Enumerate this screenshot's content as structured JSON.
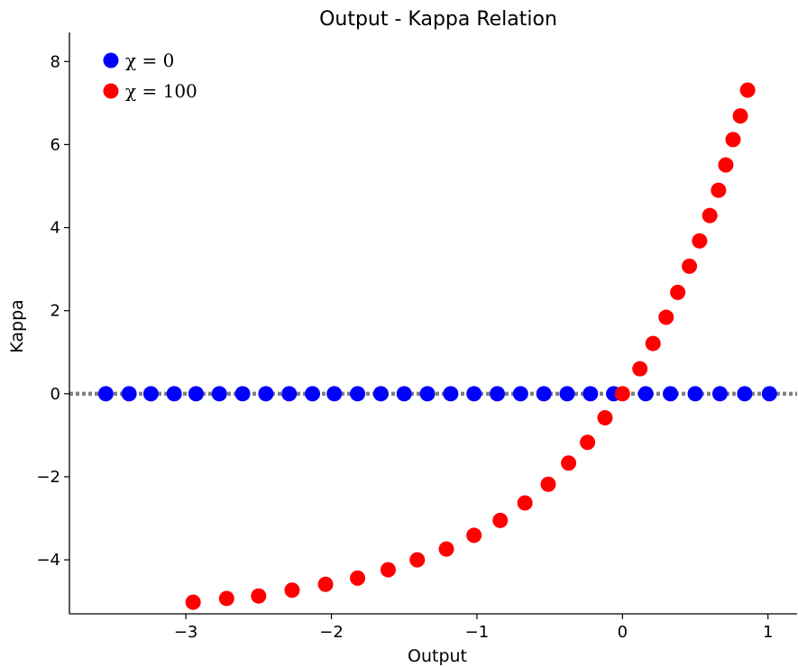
{
  "chart_data": {
    "type": "scatter",
    "title": "Output - Kappa Relation",
    "xlabel": "Output",
    "ylabel": "Kappa",
    "xlim": [
      -3.8,
      1.2
    ],
    "ylim": [
      -5.3,
      8.7
    ],
    "xticks": [
      -3,
      -2,
      -1,
      0,
      1
    ],
    "xtick_labels": [
      "−3",
      "−2",
      "−1",
      "0",
      "1"
    ],
    "yticks": [
      -4,
      -2,
      0,
      2,
      4,
      6,
      8
    ],
    "ytick_labels": [
      "−4",
      "−2",
      "0",
      "2",
      "4",
      "6",
      "8"
    ],
    "grid": false,
    "legend_position": "top-left",
    "reference_line": {
      "y": 0,
      "style": "dotted",
      "color": "#808080"
    },
    "series": [
      {
        "name": "χ = 0",
        "color": "#0000ff",
        "x": [
          -3.55,
          -3.39,
          -3.24,
          -3.08,
          -2.93,
          -2.77,
          -2.61,
          -2.45,
          -2.29,
          -2.13,
          -1.98,
          -1.82,
          -1.66,
          -1.5,
          -1.34,
          -1.18,
          -1.02,
          -0.86,
          -0.7,
          -0.54,
          -0.38,
          -0.22,
          -0.06,
          0.16,
          0.33,
          0.5,
          0.67,
          0.84,
          1.01
        ],
        "y": [
          0,
          0,
          0,
          0,
          0,
          0,
          0,
          0,
          0,
          0,
          0,
          0,
          0,
          0,
          0,
          0,
          0,
          0,
          0,
          0,
          0,
          0,
          0,
          0,
          0,
          0,
          0,
          0,
          0
        ]
      },
      {
        "name": "χ = 100",
        "color": "#ff0000",
        "x": [
          -2.95,
          -2.72,
          -2.5,
          -2.27,
          -2.04,
          -1.82,
          -1.61,
          -1.41,
          -1.21,
          -1.02,
          -0.84,
          -0.67,
          -0.51,
          -0.37,
          -0.24,
          -0.12,
          0.0,
          0.12,
          0.21,
          0.3,
          0.38,
          0.46,
          0.53,
          0.6,
          0.66,
          0.71,
          0.76,
          0.81,
          0.86
        ],
        "y": [
          -5.02,
          -4.93,
          -4.87,
          -4.73,
          -4.59,
          -4.44,
          -4.24,
          -4.0,
          -3.74,
          -3.41,
          -3.05,
          -2.63,
          -2.18,
          -1.67,
          -1.17,
          -0.58,
          0.0,
          0.6,
          1.21,
          1.84,
          2.44,
          3.07,
          3.68,
          4.29,
          4.9,
          5.51,
          6.12,
          6.69,
          7.31
        ]
      }
    ]
  }
}
